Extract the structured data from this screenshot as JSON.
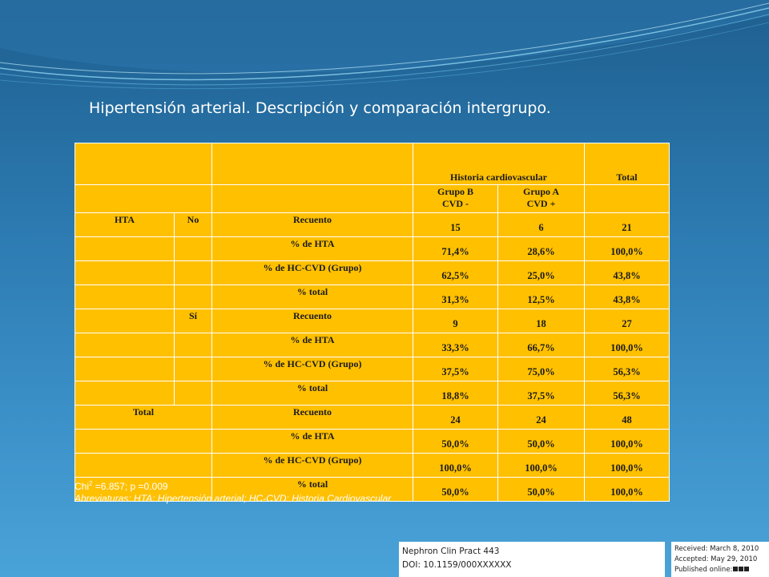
{
  "slide": {
    "title": "Hipertensión arterial. Descripción y comparación intergrupo."
  },
  "table": {
    "header": {
      "group_header": "Historia cardiovascular",
      "total_header": "Total",
      "col_b_line1": "Grupo B",
      "col_b_line2": "CVD -",
      "col_a_line1": "Grupo A",
      "col_a_line2": "CVD +"
    },
    "rows": [
      {
        "c1": "HTA",
        "c2": "No",
        "label": "Recuento",
        "b": "15",
        "a": "6",
        "t": "21"
      },
      {
        "c1": "",
        "c2": "",
        "label": "% de HTA",
        "b": "71,4%",
        "a": "28,6%",
        "t": "100,0%"
      },
      {
        "c1": "",
        "c2": "",
        "label": "% de HC-CVD (Grupo)",
        "b": "62,5%",
        "a": "25,0%",
        "t": "43,8%"
      },
      {
        "c1": "",
        "c2": "",
        "label": "% total",
        "b": "31,3%",
        "a": "12,5%",
        "t": "43,8%"
      },
      {
        "c1": "",
        "c2": "Sí",
        "label": "Recuento",
        "b": "9",
        "a": "18",
        "t": "27"
      },
      {
        "c1": "",
        "c2": "",
        "label": "% de HTA",
        "b": "33,3%",
        "a": "66,7%",
        "t": "100,0%"
      },
      {
        "c1": "",
        "c2": "",
        "label": "% de HC-CVD (Grupo)",
        "b": "37,5%",
        "a": "75,0%",
        "t": "56,3%"
      },
      {
        "c1": "",
        "c2": "",
        "label": "% total",
        "b": "18,8%",
        "a": "37,5%",
        "t": "56,3%"
      },
      {
        "c1": "Total",
        "label": "Recuento",
        "b": "24",
        "a": "24",
        "t": "48"
      },
      {
        "c1": "",
        "label": "% de HTA",
        "b": "50,0%",
        "a": "50,0%",
        "t": "100,0%"
      },
      {
        "c1": "",
        "label": "% de HC-CVD (Grupo)",
        "b": "100,0%",
        "a": "100,0%",
        "t": "100,0%"
      },
      {
        "c1": "",
        "label": "% total",
        "b": "50,0%",
        "a": "50,0%",
        "t": "100,0%"
      }
    ]
  },
  "notes": {
    "chi_prefix": "Chi",
    "chi_sup": "2",
    "chi_rest": " =6.857; p =0.009",
    "abbreviations": "Abreviaturas: HTA: Hipertensión arterial; HC-CVD: Historia Cardiovascular"
  },
  "reference": {
    "journal": "Nephron Clin Pract 443",
    "doi": "DOI: 10.1159/000XXXXXX",
    "received": "Received: March 8, 2010",
    "accepted": "Accepted: May 29, 2010",
    "published": "Published online:"
  }
}
